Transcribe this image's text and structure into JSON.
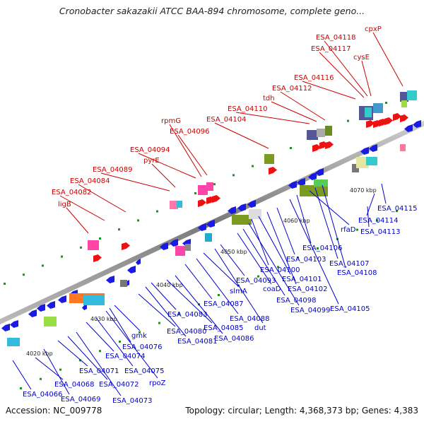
{
  "title": "Cronobacter sakazakii ATCC BAA-894 chromosome, complete geno...",
  "footer": {
    "accession": "Accession: NC_009778",
    "summary": "Topology: circular; Length: 4,368,373 bp; Genes: 4,383"
  },
  "ticks": [
    "4020 kbp",
    "4030 kbp",
    "4040 kbp",
    "4050 kbp",
    "4060 kbp",
    "4070 kbp"
  ],
  "top_labels": [
    "ligB",
    "ESA_04082",
    "ESA_04084",
    "ESA_04089",
    "pyrE",
    "ESA_04094",
    "rpmG",
    "ESA_04096",
    "ESA_04104",
    "ESA_04110",
    "tdh",
    "ESA_04112",
    "ESA_04116",
    "ESA_04117",
    "ESA_04118",
    "cysE",
    "cpxP"
  ],
  "bottom_labels": [
    "ESA_04066",
    "ESA_04068",
    "ESA_04069",
    "ESA_04071",
    "ESA_04072",
    "ESA_04073",
    "ESA_04074",
    "ESA_04075",
    "rpoZ",
    "ESA_04076",
    "gmk",
    "ESA_04080",
    "ESA_04081",
    "ESA_04083",
    "ESA_04085",
    "ESA_04086",
    "ESA_04087",
    "ESA_04088",
    "slmA",
    "dut",
    "ESA_04093",
    "coaD",
    "ESA_04098",
    "ESA_04099",
    "ESA_04100",
    "ESA_04101",
    "ESA_04102",
    "ESA_04103",
    "ESA_04105",
    "ESA_04106",
    "rfaD",
    "ESA_04107",
    "ESA_04108",
    "ESA_04113",
    "ESA_04114",
    "ESA_04115"
  ],
  "colors": {
    "forward_label": "#cc0000",
    "reverse_label": "#0000cc",
    "forward_gene": "#ee1111",
    "reverse_gene": "#1a1ae6",
    "backbone": "#888888"
  }
}
